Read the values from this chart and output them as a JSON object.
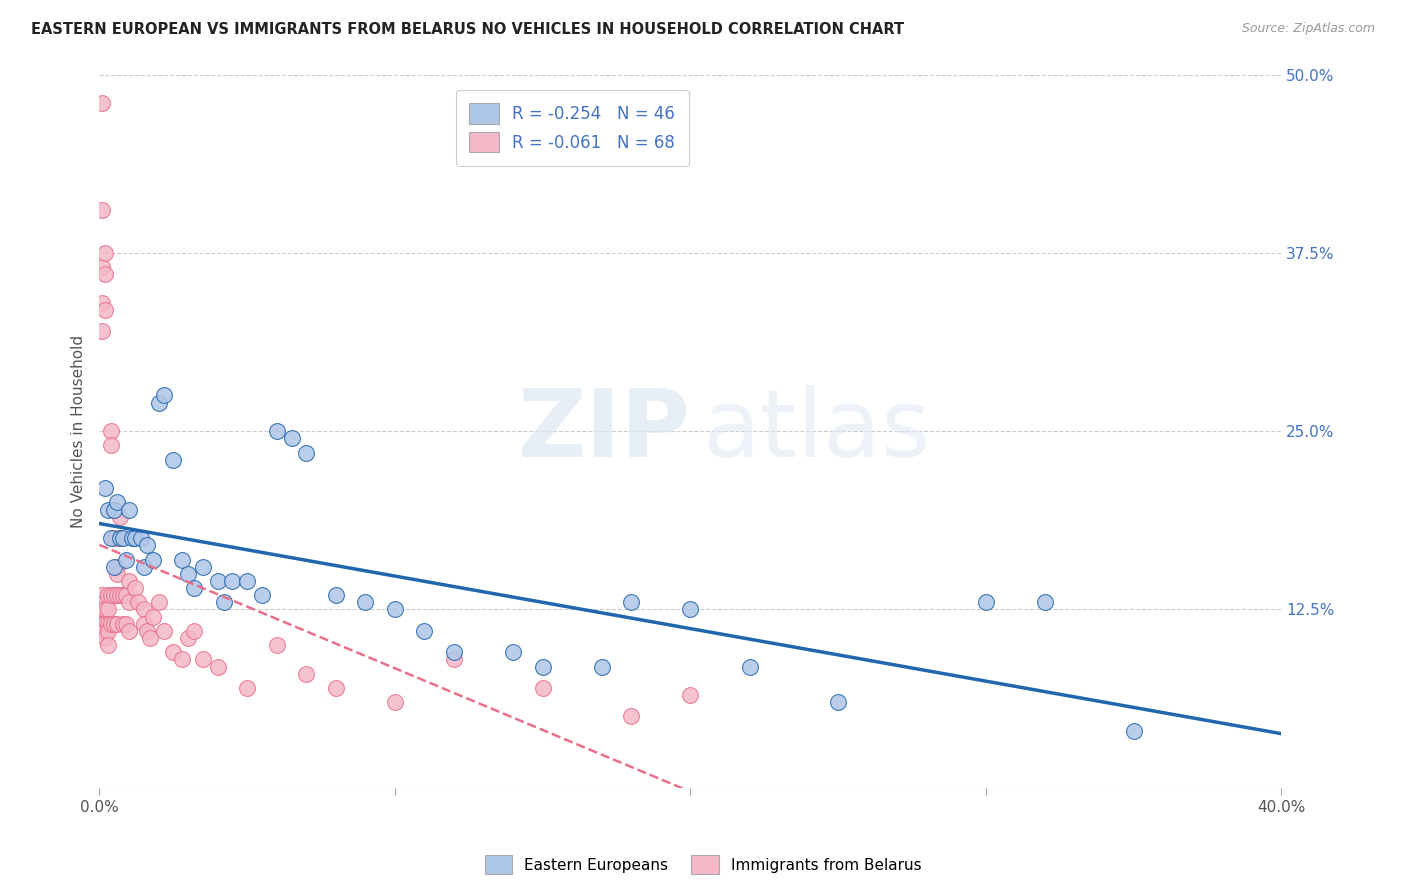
{
  "title": "EASTERN EUROPEAN VS IMMIGRANTS FROM BELARUS NO VEHICLES IN HOUSEHOLD CORRELATION CHART",
  "source": "Source: ZipAtlas.com",
  "ylabel": "No Vehicles in Household",
  "xlim": [
    0.0,
    0.4
  ],
  "ylim": [
    0.0,
    0.5
  ],
  "xticks": [
    0.0,
    0.1,
    0.2,
    0.3,
    0.4
  ],
  "xtick_labels": [
    "0.0%",
    "",
    "",
    "",
    "40.0%"
  ],
  "ytick_labels_right": [
    "50.0%",
    "37.5%",
    "25.0%",
    "12.5%",
    ""
  ],
  "yticks": [
    0.5,
    0.375,
    0.25,
    0.125,
    0.0
  ],
  "blue_R": -0.254,
  "blue_N": 46,
  "pink_R": -0.061,
  "pink_N": 68,
  "blue_color": "#aec6e8",
  "pink_color": "#f4b8c8",
  "blue_line_color": "#2166ac",
  "pink_line_color": "#e8708a",
  "grid_color": "#cccccc",
  "legend_label_blue": "Eastern Europeans",
  "legend_label_pink": "Immigrants from Belarus",
  "blue_x": [
    0.002,
    0.003,
    0.004,
    0.005,
    0.005,
    0.006,
    0.007,
    0.008,
    0.009,
    0.01,
    0.011,
    0.012,
    0.014,
    0.015,
    0.016,
    0.018,
    0.02,
    0.022,
    0.025,
    0.028,
    0.03,
    0.032,
    0.035,
    0.04,
    0.042,
    0.045,
    0.05,
    0.055,
    0.06,
    0.065,
    0.07,
    0.08,
    0.09,
    0.1,
    0.11,
    0.12,
    0.14,
    0.15,
    0.17,
    0.18,
    0.2,
    0.22,
    0.25,
    0.3,
    0.32,
    0.35
  ],
  "blue_y": [
    0.21,
    0.195,
    0.175,
    0.195,
    0.155,
    0.2,
    0.175,
    0.175,
    0.16,
    0.195,
    0.175,
    0.175,
    0.175,
    0.155,
    0.17,
    0.16,
    0.27,
    0.275,
    0.23,
    0.16,
    0.15,
    0.14,
    0.155,
    0.145,
    0.13,
    0.145,
    0.145,
    0.135,
    0.25,
    0.245,
    0.235,
    0.135,
    0.13,
    0.125,
    0.11,
    0.095,
    0.095,
    0.085,
    0.085,
    0.13,
    0.125,
    0.085,
    0.06,
    0.13,
    0.13,
    0.04
  ],
  "pink_x": [
    0.001,
    0.001,
    0.001,
    0.001,
    0.001,
    0.001,
    0.001,
    0.001,
    0.001,
    0.002,
    0.002,
    0.002,
    0.002,
    0.002,
    0.002,
    0.002,
    0.002,
    0.003,
    0.003,
    0.003,
    0.003,
    0.003,
    0.004,
    0.004,
    0.004,
    0.004,
    0.005,
    0.005,
    0.005,
    0.005,
    0.006,
    0.006,
    0.006,
    0.006,
    0.007,
    0.007,
    0.007,
    0.008,
    0.008,
    0.009,
    0.009,
    0.01,
    0.01,
    0.01,
    0.012,
    0.013,
    0.015,
    0.015,
    0.016,
    0.017,
    0.018,
    0.02,
    0.022,
    0.025,
    0.028,
    0.03,
    0.032,
    0.035,
    0.04,
    0.05,
    0.06,
    0.07,
    0.08,
    0.1,
    0.12,
    0.15,
    0.18,
    0.2
  ],
  "pink_y": [
    0.48,
    0.405,
    0.365,
    0.34,
    0.32,
    0.135,
    0.125,
    0.115,
    0.11,
    0.375,
    0.36,
    0.335,
    0.13,
    0.125,
    0.115,
    0.11,
    0.105,
    0.135,
    0.125,
    0.115,
    0.11,
    0.1,
    0.25,
    0.24,
    0.135,
    0.115,
    0.195,
    0.175,
    0.135,
    0.115,
    0.155,
    0.15,
    0.135,
    0.115,
    0.19,
    0.175,
    0.135,
    0.135,
    0.115,
    0.135,
    0.115,
    0.145,
    0.13,
    0.11,
    0.14,
    0.13,
    0.125,
    0.115,
    0.11,
    0.105,
    0.12,
    0.13,
    0.11,
    0.095,
    0.09,
    0.105,
    0.11,
    0.09,
    0.085,
    0.07,
    0.1,
    0.08,
    0.07,
    0.06,
    0.09,
    0.07,
    0.05,
    0.065
  ]
}
